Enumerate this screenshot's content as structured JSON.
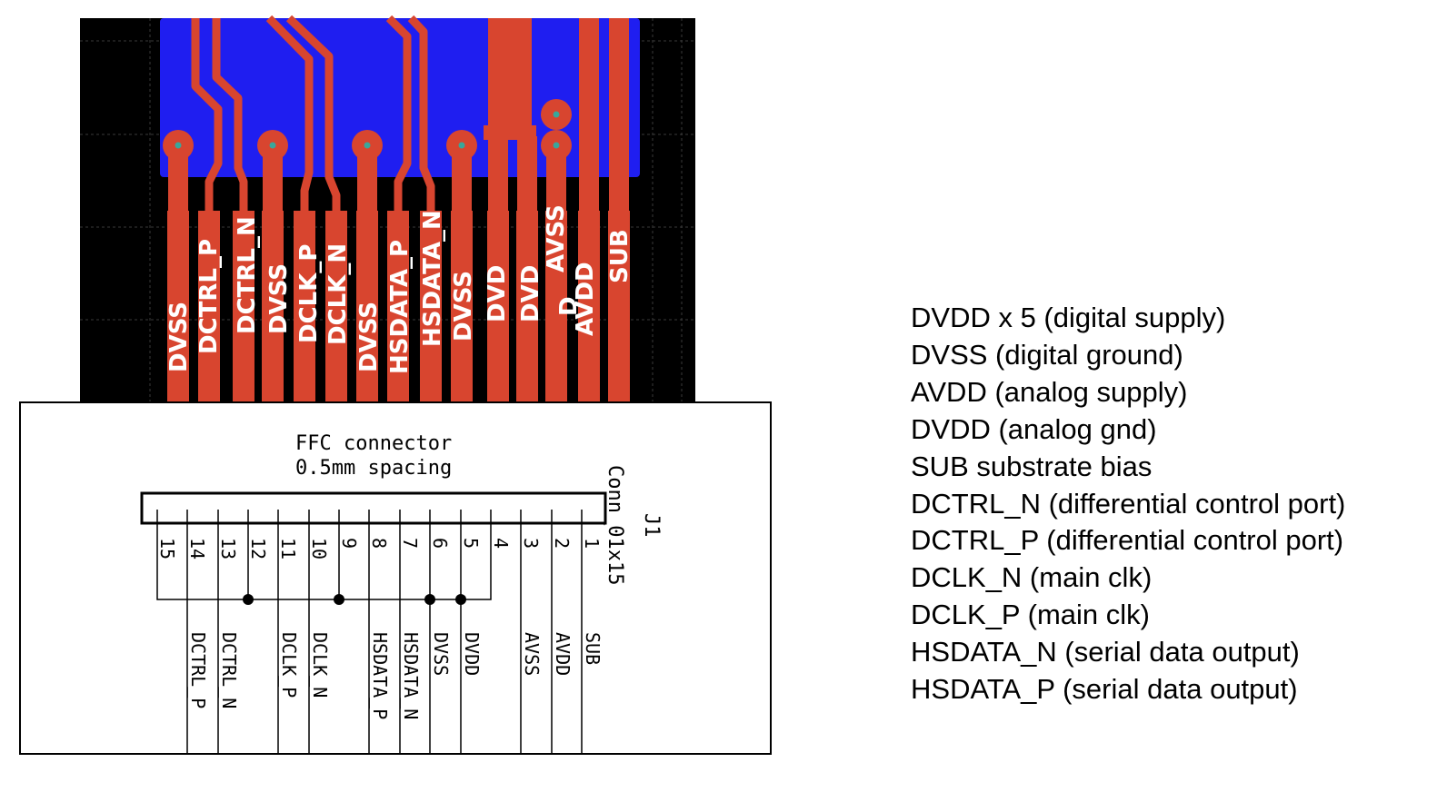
{
  "colors": {
    "board_background": "#000000",
    "copper_pour": "#1f1ef0",
    "trace": "#d8452f",
    "via_center": "#3aa69a",
    "grid": "#3a3a3a"
  },
  "pcb": {
    "pad_labels": [
      "DVSS",
      "DCTRL_P",
      "DCTRL_N",
      "DVSS",
      "DCLK_P",
      "DCLK_N",
      "DVSS",
      "HSDATA_P",
      "HSDATA_N",
      "DVSS",
      "DVD",
      "DVD",
      "AVSS",
      "D",
      "AVDD",
      "SUB"
    ]
  },
  "schematic": {
    "title_line1": "FFC connector",
    "title_line2": "0.5mm spacing",
    "ref": "J1",
    "value": "Conn_01x15",
    "pin_numbers": [
      "15",
      "14",
      "13",
      "12",
      "11",
      "10",
      "9",
      "8",
      "7",
      "6",
      "5",
      "4",
      "3",
      "2",
      "1"
    ],
    "net_labels": [
      "DCTRL_P",
      "DCTRL_N",
      "DCLK_P",
      "DCLK_N",
      "HSDATA_P",
      "HSDATA_N",
      "DVSS",
      "DVDD",
      "AVSS",
      "AVDD",
      "SUB"
    ]
  },
  "legend": [
    "DVDD x 5 (digital supply)",
    "DVSS (digital ground)",
    "AVDD (analog supply)",
    "DVDD (analog gnd)",
    "SUB substrate bias",
    "DCTRL_N (differential control port)",
    "DCTRL_P (differential control port)",
    "DCLK_N (main clk)",
    "DCLK_P (main clk)",
    "HSDATA_N (serial data output)",
    "HSDATA_P (serial data output)"
  ]
}
